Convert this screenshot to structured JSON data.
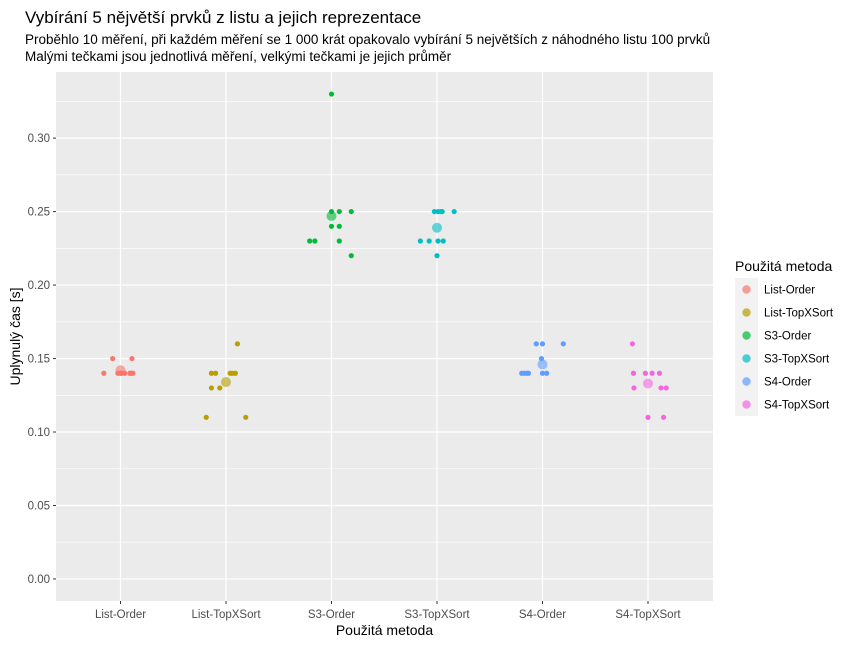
{
  "chart_data": {
    "type": "scatter",
    "title": "Vybírání 5 nějvětší prvků z listu a jejich reprezentace",
    "subtitle_lines": [
      "Proběhlo 10 měření, při každém měření se 1 000 krát opakovalo vybírání 5 největších z náhodného listu 100 prvků",
      "Malými tečkami jsou jednotlivá měření, velkými tečkami je jejich průměr"
    ],
    "xlabel": "Použitá metoda",
    "ylabel": "Uplynulý čas [s]",
    "ylim": [
      -0.015,
      0.345
    ],
    "yticks": [
      0.0,
      0.05,
      0.1,
      0.15,
      0.2,
      0.25,
      0.3
    ],
    "ytick_labels": [
      "0.00",
      "0.05",
      "0.10",
      "0.15",
      "0.20",
      "0.25",
      "0.30"
    ],
    "categories": [
      "List-Order",
      "List-TopXSort",
      "S3-Order",
      "S3-TopXSort",
      "S4-Order",
      "S4-TopXSort"
    ],
    "grid": true,
    "legend": {
      "title": "Použitá metoda",
      "placement": "right"
    },
    "series": [
      {
        "name": "List-Order",
        "color": "#F8766D",
        "points": [
          {
            "jitter": -0.32,
            "y": 0.14
          },
          {
            "jitter": -0.15,
            "y": 0.15
          },
          {
            "jitter": -0.05,
            "y": 0.14
          },
          {
            "jitter": 0.0,
            "y": 0.14
          },
          {
            "jitter": 0.02,
            "y": 0.14
          },
          {
            "jitter": 0.08,
            "y": 0.14
          },
          {
            "jitter": 0.18,
            "y": 0.14
          },
          {
            "jitter": 0.2,
            "y": 0.14
          },
          {
            "jitter": 0.22,
            "y": 0.15
          },
          {
            "jitter": 0.24,
            "y": 0.14
          }
        ],
        "mean": 0.142
      },
      {
        "name": "List-TopXSort",
        "color": "#B79F00",
        "points": [
          {
            "jitter": -0.38,
            "y": 0.11
          },
          {
            "jitter": -0.28,
            "y": 0.14
          },
          {
            "jitter": -0.28,
            "y": 0.13
          },
          {
            "jitter": -0.2,
            "y": 0.14
          },
          {
            "jitter": -0.12,
            "y": 0.13
          },
          {
            "jitter": 0.08,
            "y": 0.14
          },
          {
            "jitter": 0.12,
            "y": 0.14
          },
          {
            "jitter": 0.18,
            "y": 0.14
          },
          {
            "jitter": 0.22,
            "y": 0.16
          },
          {
            "jitter": 0.38,
            "y": 0.11
          }
        ],
        "mean": 0.134
      },
      {
        "name": "S3-Order",
        "color": "#00BA38",
        "points": [
          {
            "jitter": -0.42,
            "y": 0.23
          },
          {
            "jitter": -0.32,
            "y": 0.23
          },
          {
            "jitter": 0.0,
            "y": 0.33
          },
          {
            "jitter": 0.0,
            "y": 0.25
          },
          {
            "jitter": 0.0,
            "y": 0.24
          },
          {
            "jitter": 0.15,
            "y": 0.25
          },
          {
            "jitter": 0.15,
            "y": 0.24
          },
          {
            "jitter": 0.15,
            "y": 0.23
          },
          {
            "jitter": 0.38,
            "y": 0.25
          },
          {
            "jitter": 0.38,
            "y": 0.22
          }
        ],
        "mean": 0.247
      },
      {
        "name": "S3-TopXSort",
        "color": "#00BFC4",
        "points": [
          {
            "jitter": -0.32,
            "y": 0.23
          },
          {
            "jitter": -0.15,
            "y": 0.23
          },
          {
            "jitter": -0.05,
            "y": 0.25
          },
          {
            "jitter": 0.0,
            "y": 0.22
          },
          {
            "jitter": 0.02,
            "y": 0.25
          },
          {
            "jitter": 0.02,
            "y": 0.23
          },
          {
            "jitter": 0.07,
            "y": 0.25
          },
          {
            "jitter": 0.1,
            "y": 0.25
          },
          {
            "jitter": 0.12,
            "y": 0.23
          },
          {
            "jitter": 0.33,
            "y": 0.25
          }
        ],
        "mean": 0.239
      },
      {
        "name": "S4-Order",
        "color": "#619CFF",
        "points": [
          {
            "jitter": -0.4,
            "y": 0.14
          },
          {
            "jitter": -0.35,
            "y": 0.14
          },
          {
            "jitter": -0.3,
            "y": 0.14
          },
          {
            "jitter": -0.27,
            "y": 0.14
          },
          {
            "jitter": -0.12,
            "y": 0.16
          },
          {
            "jitter": 0.0,
            "y": 0.16
          },
          {
            "jitter": 0.0,
            "y": 0.14
          },
          {
            "jitter": 0.08,
            "y": 0.14
          },
          {
            "jitter": 0.4,
            "y": 0.16
          },
          {
            "jitter": -0.02,
            "y": 0.15
          }
        ],
        "mean": 0.146
      },
      {
        "name": "S4-TopXSort",
        "color": "#F564E3",
        "points": [
          {
            "jitter": -0.3,
            "y": 0.16
          },
          {
            "jitter": -0.28,
            "y": 0.14
          },
          {
            "jitter": -0.27,
            "y": 0.13
          },
          {
            "jitter": -0.05,
            "y": 0.14
          },
          {
            "jitter": 0.0,
            "y": 0.11
          },
          {
            "jitter": 0.08,
            "y": 0.14
          },
          {
            "jitter": 0.22,
            "y": 0.14
          },
          {
            "jitter": 0.25,
            "y": 0.13
          },
          {
            "jitter": 0.3,
            "y": 0.11
          },
          {
            "jitter": 0.35,
            "y": 0.13
          }
        ],
        "mean": 0.133
      }
    ]
  }
}
